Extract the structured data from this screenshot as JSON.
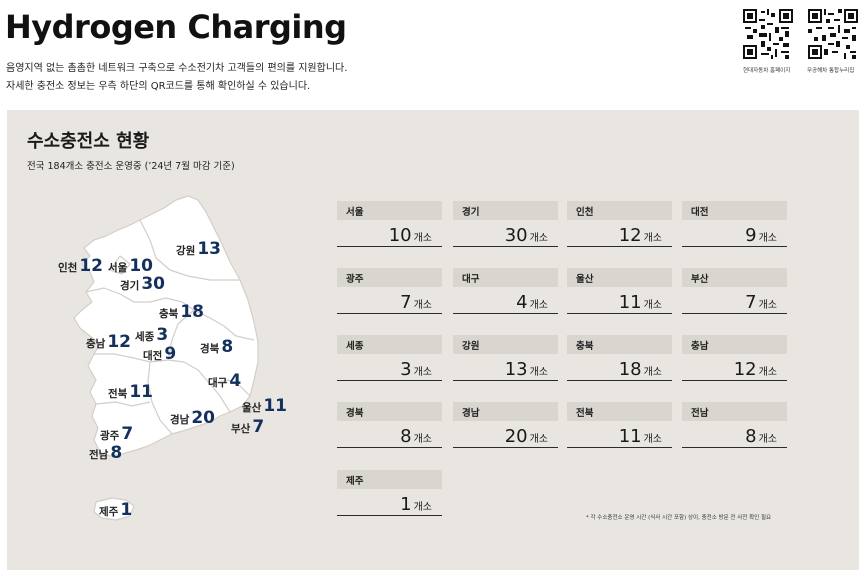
{
  "header": {
    "title": "Hydrogen Charging",
    "subtitle_line1": "음영지역 없는 촘촘한 네트워크 구축으로 수소전기차 고객들의 편의를 지원합니다.",
    "subtitle_line2": "자세한 충전소 정보는 우측 하단의 QR코드를 통해 확인하실 수 있습니다.",
    "qr_codes": [
      {
        "label": "현대자동차 홈페이지",
        "icon": "qr-code-icon"
      },
      {
        "label": "무공해차 통합누리집",
        "icon": "qr-code-icon"
      }
    ]
  },
  "section": {
    "title": "수소충전소 현황",
    "subtitle": "전국 184개소 충전소 운영중 (’24년 7월 마감 기준)",
    "unit": "개소",
    "footnote": "* 각 수소충전소 운영 시간 (식사 시간 포함) 상이, 충전소 방문 전 사전 확인 필요"
  },
  "map_labels": [
    {
      "name": "강원",
      "count": "13"
    },
    {
      "name": "인천",
      "count": "12"
    },
    {
      "name": "서울",
      "count": "10"
    },
    {
      "name": "경기",
      "count": "30"
    },
    {
      "name": "충북",
      "count": "18"
    },
    {
      "name": "세종",
      "count": "3"
    },
    {
      "name": "충남",
      "count": "12"
    },
    {
      "name": "대전",
      "count": "9"
    },
    {
      "name": "경북",
      "count": "8"
    },
    {
      "name": "대구",
      "count": "4"
    },
    {
      "name": "전북",
      "count": "11"
    },
    {
      "name": "울산",
      "count": "11"
    },
    {
      "name": "경남",
      "count": "20"
    },
    {
      "name": "부산",
      "count": "7"
    },
    {
      "name": "광주",
      "count": "7"
    },
    {
      "name": "전남",
      "count": "8"
    },
    {
      "name": "제주",
      "count": "1"
    }
  ],
  "regions": [
    {
      "name": "서울",
      "count": "10"
    },
    {
      "name": "경기",
      "count": "30"
    },
    {
      "name": "인천",
      "count": "12"
    },
    {
      "name": "대전",
      "count": "9"
    },
    {
      "name": "광주",
      "count": "7"
    },
    {
      "name": "대구",
      "count": "4"
    },
    {
      "name": "울산",
      "count": "11"
    },
    {
      "name": "부산",
      "count": "7"
    },
    {
      "name": "세종",
      "count": "3"
    },
    {
      "name": "강원",
      "count": "13"
    },
    {
      "name": "충북",
      "count": "18"
    },
    {
      "name": "충남",
      "count": "12"
    },
    {
      "name": "경북",
      "count": "8"
    },
    {
      "name": "경남",
      "count": "20"
    },
    {
      "name": "전북",
      "count": "11"
    },
    {
      "name": "전남",
      "count": "8"
    },
    {
      "name": "제주",
      "count": "1"
    }
  ],
  "colors": {
    "panel_bg": "#e9e6e1",
    "map_fill": "#ffffff",
    "card_header": "#d9d5cf",
    "count_accent": "#13315c"
  }
}
